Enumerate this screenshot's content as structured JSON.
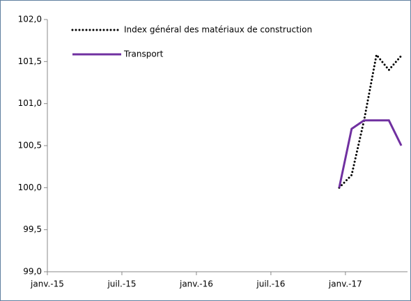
{
  "chart_data": {
    "type": "line",
    "categories": [
      "janv.-15",
      null,
      null,
      null,
      null,
      null,
      "juil.-15",
      null,
      null,
      null,
      null,
      null,
      "janv.-16",
      null,
      null,
      null,
      null,
      null,
      "juil.-16",
      null,
      null,
      null,
      null,
      null,
      "janv.-17",
      null,
      null,
      null,
      null
    ],
    "series": [
      {
        "name": "Index général des matériaux de construction",
        "color": "#000000",
        "dash": "dotted",
        "values": [
          null,
          null,
          null,
          null,
          null,
          null,
          null,
          null,
          null,
          null,
          null,
          null,
          null,
          null,
          null,
          null,
          null,
          null,
          null,
          null,
          null,
          null,
          null,
          100.0,
          100.15,
          100.8,
          101.58,
          101.4,
          101.57
        ]
      },
      {
        "name": "Transport",
        "color": "#7030a0",
        "dash": "solid",
        "values": [
          null,
          null,
          null,
          null,
          null,
          null,
          null,
          null,
          null,
          null,
          null,
          null,
          null,
          null,
          null,
          null,
          null,
          null,
          null,
          null,
          null,
          null,
          null,
          100.0,
          100.7,
          100.8,
          100.8,
          100.8,
          100.5
        ]
      }
    ],
    "ylim": [
      99,
      102
    ],
    "yticks": [
      {
        "value": 99,
        "label": "99,0"
      },
      {
        "value": 99.5,
        "label": "99,5"
      },
      {
        "value": 100,
        "label": "100,0"
      },
      {
        "value": 100.5,
        "label": "100,5"
      },
      {
        "value": 101,
        "label": "101,0"
      },
      {
        "value": 101.5,
        "label": "101,5"
      },
      {
        "value": 102,
        "label": "102,0"
      }
    ],
    "legend": "top-left",
    "grid": false
  }
}
